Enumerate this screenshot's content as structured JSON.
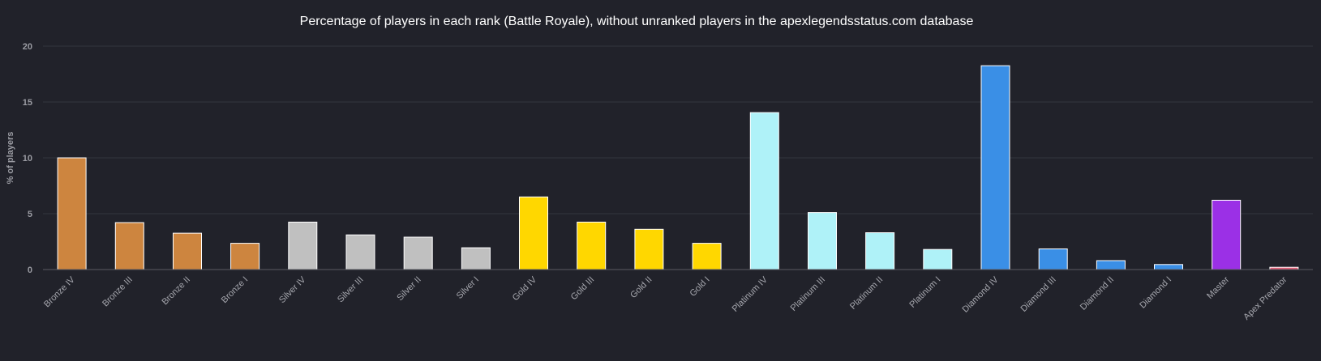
{
  "chart_data": {
    "type": "bar",
    "title": "Percentage of players in each rank (Battle Royale), without unranked players in the apexlegendsstatus.com database",
    "xlabel": "",
    "ylabel": "% of players",
    "ylim": [
      0,
      20
    ],
    "yticks": [
      0,
      5,
      10,
      15,
      20
    ],
    "grid": true,
    "legend": "none",
    "categories": [
      "Bronze IV",
      "Bronze III",
      "Bronze II",
      "Bronze I",
      "Silver IV",
      "Silver III",
      "Silver II",
      "Silver I",
      "Gold IV",
      "Gold III",
      "Gold II",
      "Gold I",
      "Platinum IV",
      "Platinum III",
      "Platinum II",
      "Platinum I",
      "Diamond IV",
      "Diamond III",
      "Diamond II",
      "Diamond I",
      "Master",
      "Apex Predator"
    ],
    "values": [
      10.0,
      4.2,
      3.25,
      2.35,
      4.25,
      3.1,
      2.9,
      1.95,
      6.5,
      4.25,
      3.6,
      2.35,
      14.05,
      5.1,
      3.3,
      1.8,
      18.25,
      1.85,
      0.8,
      0.45,
      6.2,
      0.2
    ],
    "colors": [
      "#cd853f",
      "#cd853f",
      "#cd853f",
      "#cd853f",
      "#c0c0c0",
      "#c0c0c0",
      "#c0c0c0",
      "#c0c0c0",
      "#ffd700",
      "#ffd700",
      "#ffd700",
      "#ffd700",
      "#aff2f8",
      "#aff2f8",
      "#aff2f8",
      "#aff2f8",
      "#3a8fe6",
      "#3a8fe6",
      "#3a8fe6",
      "#3a8fe6",
      "#9b30e6",
      "#e4607a"
    ]
  },
  "colors": {
    "background": "#21222a",
    "grid": "#34353e",
    "text": "#9b9ca3"
  }
}
